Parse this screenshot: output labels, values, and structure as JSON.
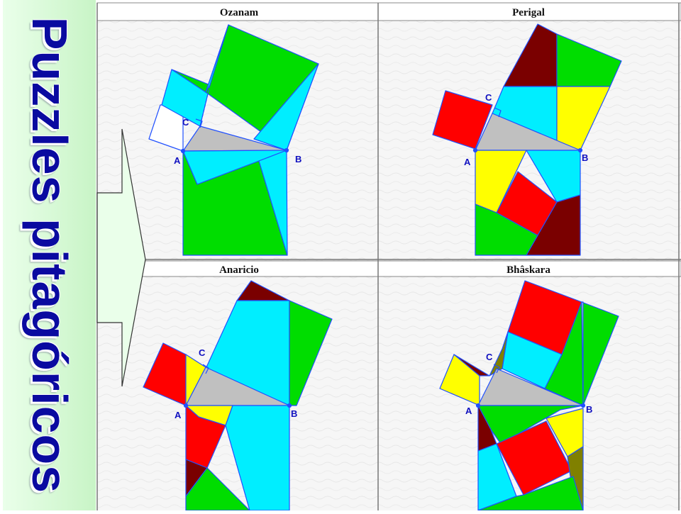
{
  "slide": {
    "title": "Puzzles pitagóricos"
  },
  "panels": [
    {
      "title": "Ozanam",
      "points": {
        "a": "A",
        "b": "B",
        "c": "C"
      }
    },
    {
      "title": "Perigal",
      "points": {
        "a": "A",
        "b": "B",
        "c": "C"
      }
    },
    {
      "title": "Anaricio",
      "points": {
        "a": "A",
        "b": "B",
        "c": "C"
      }
    },
    {
      "title": "Bhâskara",
      "points": {
        "a": "A",
        "b": "B",
        "c": "C"
      }
    }
  ],
  "colors": {
    "green": "#00dd00",
    "cyan": "#00eeff",
    "red": "#ff0000",
    "yellow": "#ffff00",
    "maroon": "#7a0000",
    "olive": "#808000",
    "gray": "#c0c0c0",
    "sidebar": "#c8f4c6",
    "title_text": "#0a0aa0"
  }
}
